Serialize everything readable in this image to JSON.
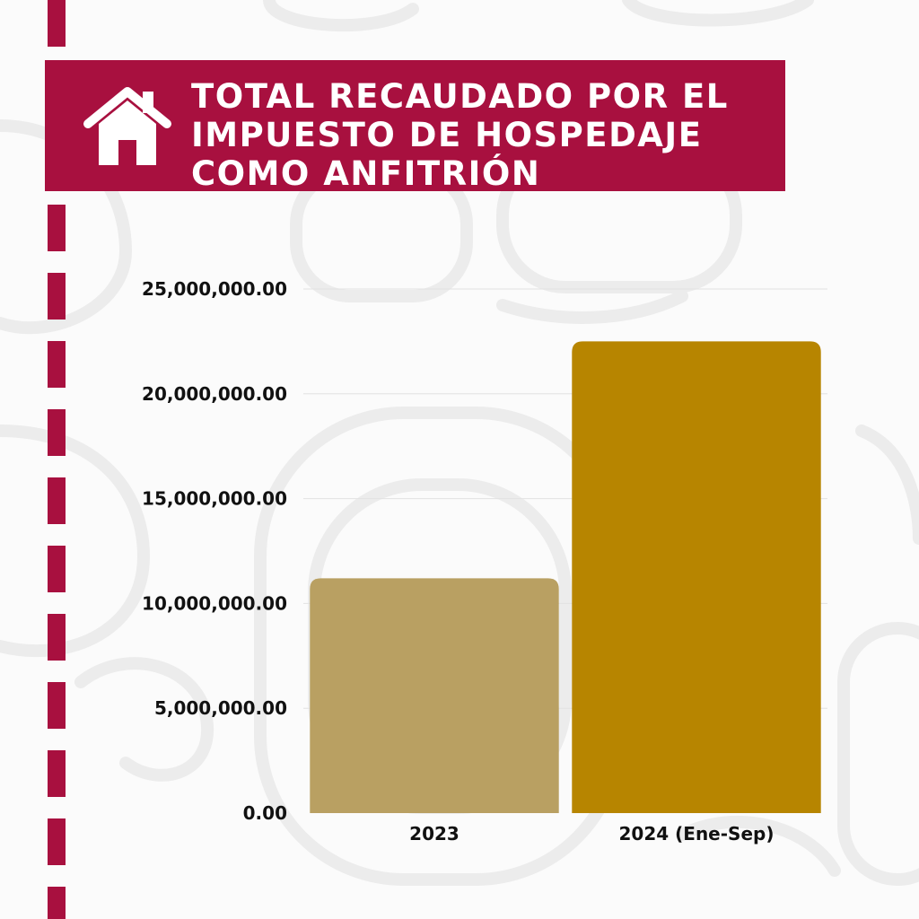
{
  "header": {
    "title": "TOTAL RECAUDADO POR EL IMPUESTO DE HOSPEDAJE COMO ANFITRIÓN",
    "icon": "house-icon"
  },
  "colors": {
    "banner": "#a8103f",
    "bar_2023": "#b9a062",
    "bar_2024": "#b78500"
  },
  "chart_data": {
    "type": "bar",
    "categories": [
      "2023",
      "2024 (Ene-Sep)"
    ],
    "values": [
      11200000,
      22500000
    ],
    "ylim": [
      0,
      25000000
    ],
    "yticks": [
      "0.00",
      "5,000,000.00",
      "10,000,000.00",
      "15,000,000.00",
      "20,000,000.00",
      "25,000,000.00"
    ],
    "grid": true,
    "legend": "none"
  }
}
